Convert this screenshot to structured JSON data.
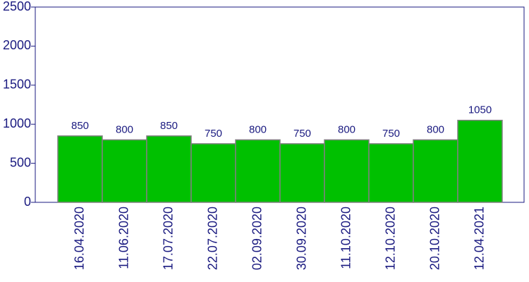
{
  "chart_data": {
    "type": "bar",
    "categories": [
      "16.04.2020",
      "11.06.2020",
      "17.07.2020",
      "22.07.2020",
      "02.09.2020",
      "30.09.2020",
      "11.10.2020",
      "12.10.2020",
      "20.10.2020",
      "12.04.2021"
    ],
    "values": [
      850,
      800,
      850,
      750,
      800,
      750,
      800,
      750,
      800,
      1050
    ],
    "color": "#00c000",
    "ylim": [
      0,
      2500
    ],
    "yticks": [
      0,
      500,
      1000,
      1500,
      2000,
      2500
    ]
  }
}
